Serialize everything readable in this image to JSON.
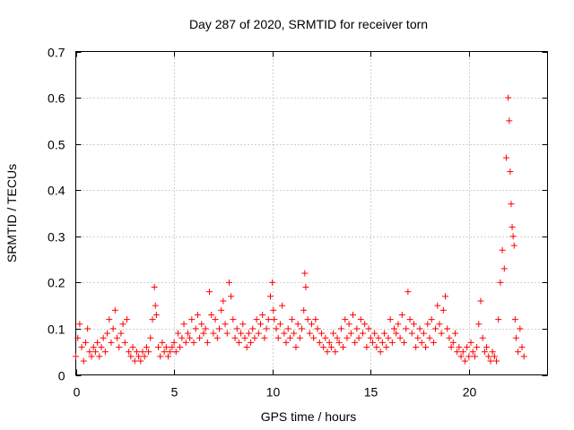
{
  "chart_data": {
    "type": "scatter",
    "title": "Day 287 of 2020, SRMTID for receiver torn",
    "xlabel": "GPS time / hours",
    "ylabel": "SRMTID / TECUs",
    "xlim": [
      0,
      24
    ],
    "ylim": [
      0,
      0.7
    ],
    "xticks": [
      0,
      5,
      10,
      15,
      20
    ],
    "xtick_labels": [
      "0",
      "5",
      "10",
      "15",
      "20"
    ],
    "yticks": [
      0,
      0.1,
      0.2,
      0.3,
      0.4,
      0.5,
      0.6,
      0.7
    ],
    "ytick_labels": [
      "0",
      "0.1",
      "0.2",
      "0.3",
      "0.4",
      "0.5",
      "0.6",
      "0.7"
    ],
    "grid": true,
    "marker": "+",
    "color": "#ff0000",
    "series": [
      {
        "name": "SRMTID",
        "x": [
          0.0,
          0.1,
          0.2,
          0.3,
          0.4,
          0.5,
          0.6,
          0.7,
          0.8,
          0.9,
          1.0,
          1.1,
          1.2,
          1.3,
          1.4,
          1.5,
          1.6,
          1.7,
          1.8,
          1.9,
          2.0,
          2.1,
          2.2,
          2.3,
          2.4,
          2.5,
          2.6,
          2.7,
          2.8,
          2.9,
          3.0,
          3.1,
          3.2,
          3.3,
          3.4,
          3.5,
          3.6,
          3.7,
          3.8,
          3.9,
          4.0,
          4.05,
          4.1,
          4.2,
          4.3,
          4.4,
          4.5,
          4.6,
          4.7,
          4.8,
          4.9,
          5.0,
          5.1,
          5.2,
          5.3,
          5.4,
          5.5,
          5.6,
          5.7,
          5.8,
          5.9,
          6.0,
          6.1,
          6.2,
          6.3,
          6.4,
          6.5,
          6.6,
          6.7,
          6.8,
          6.9,
          7.0,
          7.1,
          7.2,
          7.3,
          7.4,
          7.5,
          7.6,
          7.7,
          7.8,
          7.9,
          8.0,
          8.1,
          8.2,
          8.3,
          8.4,
          8.5,
          8.6,
          8.7,
          8.8,
          8.9,
          9.0,
          9.1,
          9.2,
          9.3,
          9.4,
          9.5,
          9.6,
          9.7,
          9.8,
          9.9,
          10.0,
          10.05,
          10.1,
          10.2,
          10.3,
          10.4,
          10.5,
          10.6,
          10.7,
          10.8,
          10.9,
          11.0,
          11.1,
          11.2,
          11.3,
          11.4,
          11.5,
          11.6,
          11.65,
          11.7,
          11.8,
          11.9,
          12.0,
          12.1,
          12.2,
          12.3,
          12.4,
          12.5,
          12.6,
          12.7,
          12.8,
          12.9,
          13.0,
          13.1,
          13.2,
          13.3,
          13.4,
          13.5,
          13.6,
          13.7,
          13.8,
          13.9,
          14.0,
          14.1,
          14.2,
          14.3,
          14.4,
          14.5,
          14.6,
          14.7,
          14.8,
          14.9,
          15.0,
          15.1,
          15.2,
          15.3,
          15.4,
          15.5,
          15.6,
          15.7,
          15.8,
          15.9,
          16.0,
          16.1,
          16.2,
          16.3,
          16.4,
          16.5,
          16.6,
          16.7,
          16.8,
          16.9,
          17.0,
          17.1,
          17.2,
          17.3,
          17.4,
          17.5,
          17.6,
          17.7,
          17.8,
          17.9,
          18.0,
          18.1,
          18.2,
          18.3,
          18.4,
          18.5,
          18.6,
          18.7,
          18.8,
          18.9,
          19.0,
          19.1,
          19.2,
          19.3,
          19.4,
          19.5,
          19.6,
          19.7,
          19.8,
          19.9,
          20.0,
          20.1,
          20.2,
          20.3,
          20.4,
          20.5,
          20.6,
          20.7,
          20.8,
          20.9,
          21.0,
          21.1,
          21.2,
          21.3,
          21.4,
          21.5,
          21.6,
          21.7,
          21.8,
          21.9,
          22.0,
          22.05,
          22.1,
          22.15,
          22.2,
          22.25,
          22.3,
          22.35,
          22.4,
          22.5,
          22.6,
          22.7,
          22.8
        ],
        "y": [
          0.04,
          0.08,
          0.11,
          0.06,
          0.03,
          0.07,
          0.1,
          0.05,
          0.04,
          0.06,
          0.05,
          0.07,
          0.04,
          0.06,
          0.08,
          0.05,
          0.09,
          0.12,
          0.07,
          0.1,
          0.14,
          0.08,
          0.06,
          0.09,
          0.11,
          0.07,
          0.12,
          0.05,
          0.04,
          0.06,
          0.03,
          0.05,
          0.04,
          0.03,
          0.05,
          0.04,
          0.06,
          0.05,
          0.08,
          0.12,
          0.19,
          0.15,
          0.13,
          0.06,
          0.04,
          0.07,
          0.05,
          0.06,
          0.04,
          0.05,
          0.06,
          0.07,
          0.05,
          0.09,
          0.06,
          0.08,
          0.11,
          0.07,
          0.09,
          0.08,
          0.12,
          0.07,
          0.1,
          0.13,
          0.08,
          0.11,
          0.09,
          0.1,
          0.07,
          0.18,
          0.13,
          0.09,
          0.12,
          0.08,
          0.1,
          0.14,
          0.16,
          0.11,
          0.09,
          0.2,
          0.17,
          0.12,
          0.08,
          0.1,
          0.07,
          0.09,
          0.11,
          0.08,
          0.06,
          0.09,
          0.07,
          0.1,
          0.08,
          0.12,
          0.09,
          0.11,
          0.13,
          0.08,
          0.1,
          0.12,
          0.17,
          0.2,
          0.14,
          0.12,
          0.1,
          0.08,
          0.11,
          0.15,
          0.09,
          0.07,
          0.1,
          0.08,
          0.12,
          0.09,
          0.06,
          0.11,
          0.08,
          0.1,
          0.14,
          0.22,
          0.19,
          0.12,
          0.09,
          0.11,
          0.08,
          0.12,
          0.1,
          0.07,
          0.09,
          0.06,
          0.08,
          0.05,
          0.07,
          0.06,
          0.09,
          0.05,
          0.08,
          0.07,
          0.1,
          0.06,
          0.12,
          0.08,
          0.11,
          0.09,
          0.13,
          0.07,
          0.1,
          0.08,
          0.12,
          0.09,
          0.11,
          0.06,
          0.1,
          0.08,
          0.07,
          0.09,
          0.06,
          0.08,
          0.05,
          0.07,
          0.09,
          0.06,
          0.08,
          0.12,
          0.07,
          0.1,
          0.09,
          0.11,
          0.08,
          0.13,
          0.07,
          0.1,
          0.18,
          0.12,
          0.09,
          0.11,
          0.06,
          0.08,
          0.1,
          0.07,
          0.09,
          0.06,
          0.11,
          0.08,
          0.12,
          0.07,
          0.1,
          0.15,
          0.11,
          0.09,
          0.14,
          0.17,
          0.1,
          0.08,
          0.06,
          0.07,
          0.09,
          0.05,
          0.06,
          0.04,
          0.05,
          0.03,
          0.06,
          0.04,
          0.07,
          0.05,
          0.04,
          0.06,
          0.11,
          0.16,
          0.08,
          0.05,
          0.06,
          0.04,
          0.03,
          0.05,
          0.04,
          0.03,
          0.12,
          0.2,
          0.27,
          0.23,
          0.47,
          0.6,
          0.55,
          0.44,
          0.37,
          0.32,
          0.3,
          0.28,
          0.12,
          0.08,
          0.05,
          0.1,
          0.06,
          0.04
        ]
      }
    ]
  }
}
